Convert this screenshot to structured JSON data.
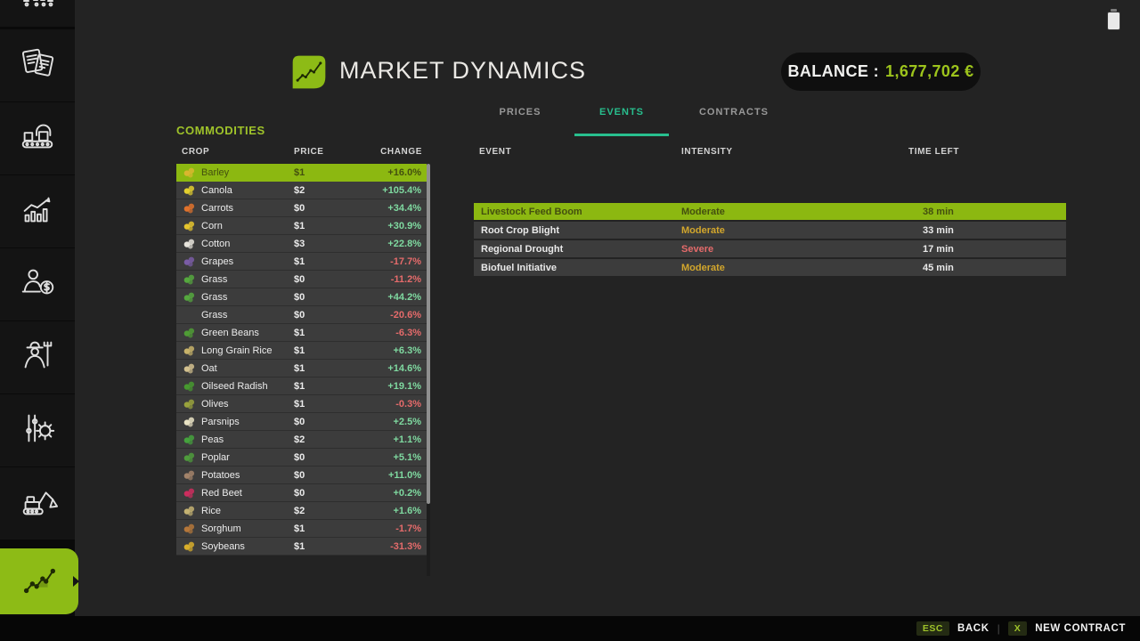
{
  "colors": {
    "accent_green": "#8dbb16",
    "title_green": "#9fc32a",
    "balance_green": "#9dc41c",
    "tab_active_teal": "#28bf8e",
    "positive_change": "#7fd9a0",
    "negative_change": "#e56b6b",
    "intensity_moderate": "#d2a62c",
    "intensity_severe": "#e56b6b"
  },
  "status_bar": {
    "battery_icon": "battery-icon"
  },
  "sidebar": {
    "items": [
      {
        "id": "documents",
        "icon": "documents-icon"
      },
      {
        "id": "production",
        "icon": "production-icon"
      },
      {
        "id": "statistics",
        "icon": "statistics-icon"
      },
      {
        "id": "finances",
        "icon": "finances-icon"
      },
      {
        "id": "farmer",
        "icon": "farmer-icon"
      },
      {
        "id": "settings",
        "icon": "settings-icon"
      },
      {
        "id": "construction",
        "icon": "construction-icon"
      },
      {
        "id": "market",
        "icon": "market-trend-icon",
        "active": true
      }
    ]
  },
  "header": {
    "app_icon": "market-leaf-icon",
    "title": "MARKET DYNAMICS",
    "balance_label": "BALANCE :",
    "balance_value": "1,677,702 €"
  },
  "tabs": [
    {
      "label": "PRICES",
      "active": false
    },
    {
      "label": "EVENTS",
      "active": true
    },
    {
      "label": "CONTRACTS",
      "active": false
    }
  ],
  "commodities": {
    "title": "COMMODITIES",
    "columns": [
      "CROP",
      "PRICE",
      "CHANGE"
    ],
    "rows": [
      {
        "crop": "Barley",
        "price": "$1",
        "change": "+16.0%",
        "icon_color": "#d9b62f",
        "selected": true
      },
      {
        "crop": "Canola",
        "price": "$2",
        "change": "+105.4%",
        "icon_color": "#e3cf2e"
      },
      {
        "crop": "Carrots",
        "price": "$0",
        "change": "+34.4%",
        "icon_color": "#e0722c"
      },
      {
        "crop": "Corn",
        "price": "$1",
        "change": "+30.9%",
        "icon_color": "#e6c52e"
      },
      {
        "crop": "Cotton",
        "price": "$3",
        "change": "+22.8%",
        "icon_color": "#e7e4dc"
      },
      {
        "crop": "Grapes",
        "price": "$1",
        "change": "-17.7%",
        "icon_color": "#7a5ca6"
      },
      {
        "crop": "Grass",
        "price": "$0",
        "change": "-11.2%",
        "icon_color": "#55a83e"
      },
      {
        "crop": "Grass",
        "price": "$0",
        "change": "+44.2%",
        "icon_color": "#55a83e"
      },
      {
        "crop": "Grass",
        "price": "$0",
        "change": "-20.6%",
        "icon_color": null
      },
      {
        "crop": "Green Beans",
        "price": "$1",
        "change": "-6.3%",
        "icon_color": "#4f9c35"
      },
      {
        "crop": "Long Grain Rice",
        "price": "$1",
        "change": "+6.3%",
        "icon_color": "#c8b36a"
      },
      {
        "crop": "Oat",
        "price": "$1",
        "change": "+14.6%",
        "icon_color": "#d3c18f"
      },
      {
        "crop": "Oilseed Radish",
        "price": "$1",
        "change": "+19.1%",
        "icon_color": "#47992f"
      },
      {
        "crop": "Olives",
        "price": "$1",
        "change": "-0.3%",
        "icon_color": "#99a23c"
      },
      {
        "crop": "Parsnips",
        "price": "$0",
        "change": "+2.5%",
        "icon_color": "#e9e3c4"
      },
      {
        "crop": "Peas",
        "price": "$2",
        "change": "+1.1%",
        "icon_color": "#45a23d"
      },
      {
        "crop": "Poplar",
        "price": "$0",
        "change": "+5.1%",
        "icon_color": "#4f9c3c"
      },
      {
        "crop": "Potatoes",
        "price": "$0",
        "change": "+11.0%",
        "icon_color": "#a3836a"
      },
      {
        "crop": "Red Beet",
        "price": "$0",
        "change": "+0.2%",
        "icon_color": "#cc2d5e"
      },
      {
        "crop": "Rice",
        "price": "$2",
        "change": "+1.6%",
        "icon_color": "#c4b272"
      },
      {
        "crop": "Sorghum",
        "price": "$1",
        "change": "-1.7%",
        "icon_color": "#b5773a"
      },
      {
        "crop": "Soybeans",
        "price": "$1",
        "change": "-31.3%",
        "icon_color": "#d8ae2b"
      }
    ]
  },
  "events": {
    "columns": [
      "EVENT",
      "INTENSITY",
      "TIME LEFT"
    ],
    "rows": [
      {
        "event": "Livestock Feed Boom",
        "intensity": "Moderate",
        "time_left": "38 min",
        "selected": true
      },
      {
        "event": "Root Crop Blight",
        "intensity": "Moderate",
        "time_left": "33 min"
      },
      {
        "event": "Regional Drought",
        "intensity": "Severe",
        "time_left": "17 min"
      },
      {
        "event": "Biofuel Initiative",
        "intensity": "Moderate",
        "time_left": "45 min"
      }
    ]
  },
  "footer": {
    "esc_key": "ESC",
    "back_label": "BACK",
    "divider": "|",
    "x_key": "X",
    "new_contract_label": "NEW CONTRACT"
  }
}
